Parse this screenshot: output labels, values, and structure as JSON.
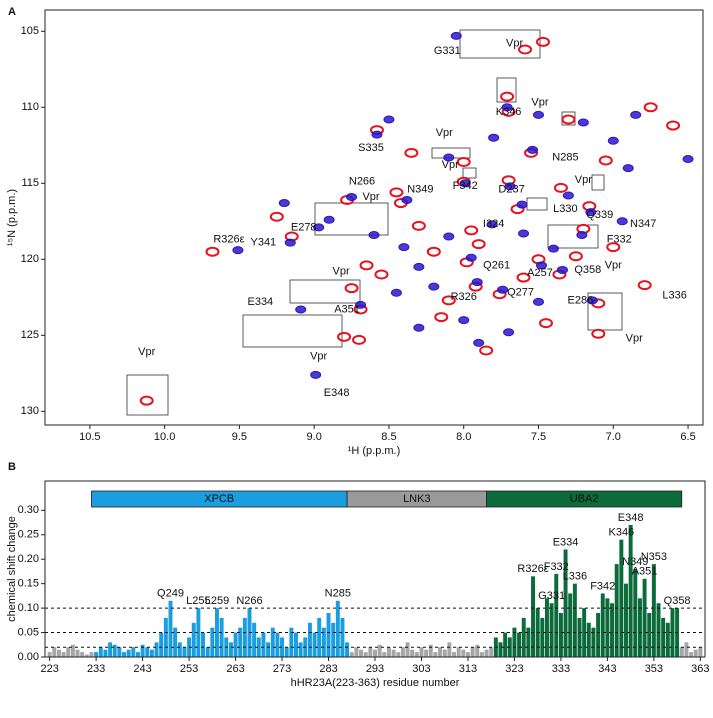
{
  "chart_data": [
    {
      "type": "scatter",
      "panel": "A",
      "x_label": "¹H (p.p.m.)",
      "y_label": "¹⁵N (p.p.m.)",
      "xlim": [
        10.8,
        6.4
      ],
      "ylim": [
        103.6,
        130.9
      ],
      "xticks": [
        {
          "value": 10.5,
          "label": "10.5"
        },
        {
          "value": 10,
          "label": "10.0"
        },
        9.5,
        {
          "value": 9,
          "label": "9.0"
        },
        8.5,
        {
          "value": 8,
          "label": "8.0"
        },
        7.5,
        {
          "value": 7,
          "label": "7.0"
        },
        6.5
      ],
      "yticks": [
        105,
        110,
        115,
        120,
        125,
        130
      ],
      "series": [
        {
          "color": "#e8101a",
          "x": [
            7.47,
            7.59,
            7.71,
            7.7,
            8.58,
            7.55,
            8.0,
            7.7,
            8.78,
            8.42,
            7.64,
            7.16,
            7.2,
            7.95,
            9.68,
            9.15,
            7.98,
            7.5,
            7.36,
            7.92,
            7.76,
            7.1,
            6.79,
            8.69,
            10.12,
            8.8,
            8.7,
            7.1,
            8.0,
            8.45,
            8.65,
            8.55,
            7.35,
            7.3,
            6.75,
            6.6,
            7.9,
            8.2,
            7.6,
            8.1,
            8.3,
            7.0,
            7.25,
            8.75,
            9.25,
            7.85,
            8.15,
            7.45,
            7.05,
            8.35
          ],
          "y": [
            105.7,
            106.2,
            109.3,
            110.3,
            111.5,
            113.0,
            114.9,
            114.8,
            116.1,
            116.3,
            116.7,
            116.5,
            118.0,
            118.1,
            119.5,
            118.5,
            120.2,
            120.0,
            121.0,
            121.8,
            122.3,
            122.9,
            121.7,
            123.3,
            129.3,
            125.1,
            125.3,
            124.9,
            113.6,
            115.6,
            120.4,
            121.0,
            115.3,
            110.8,
            110.0,
            111.2,
            119.0,
            119.5,
            121.2,
            122.7,
            117.8,
            119.2,
            119.8,
            121.9,
            117.2,
            126.0,
            123.8,
            124.2,
            113.5,
            113.0
          ]
        },
        {
          "color": "#2a18c8",
          "x": [
            8.05,
            7.71,
            8.58,
            7.54,
            7.99,
            7.69,
            8.75,
            8.38,
            7.61,
            7.15,
            6.94,
            7.21,
            8.97,
            7.81,
            9.51,
            9.16,
            7.95,
            7.48,
            7.34,
            7.91,
            7.74,
            7.14,
            9.09,
            8.69,
            8.99,
            9.2,
            8.9,
            8.4,
            8.3,
            8.1,
            8.2,
            7.6,
            7.4,
            7.3,
            7.0,
            6.9,
            6.5,
            7.5,
            7.8,
            8.1,
            8.5,
            8.0,
            7.7,
            7.9,
            8.3,
            7.2,
            6.85,
            8.6,
            7.5,
            8.45
          ],
          "y": [
            105.3,
            110.0,
            111.8,
            112.8,
            115.0,
            115.2,
            115.9,
            116.1,
            116.4,
            116.9,
            117.5,
            118.4,
            117.9,
            117.7,
            119.4,
            118.9,
            119.9,
            120.4,
            120.7,
            121.5,
            122.0,
            122.7,
            123.3,
            123.0,
            127.6,
            116.3,
            117.4,
            119.2,
            120.5,
            118.5,
            121.8,
            118.3,
            119.3,
            115.8,
            112.2,
            114.0,
            113.4,
            110.5,
            112.0,
            113.3,
            110.8,
            124.0,
            124.8,
            125.5,
            124.5,
            111.0,
            110.5,
            118.4,
            122.8,
            122.2
          ]
        }
      ],
      "annotations": [
        {
          "text": "G331",
          "x": 8.11,
          "y": 106.3
        },
        {
          "text": "K346",
          "x": 7.7,
          "y": 110.3
        },
        {
          "text": "S335",
          "x": 8.62,
          "y": 112.7
        },
        {
          "text": "N285",
          "x": 7.32,
          "y": 113.3
        },
        {
          "text": "F342",
          "x": 7.99,
          "y": 115.2
        },
        {
          "text": "D237",
          "x": 7.68,
          "y": 115.4
        },
        {
          "text": "N266",
          "x": 8.68,
          "y": 114.9
        },
        {
          "text": "N349",
          "x": 8.29,
          "y": 115.4
        },
        {
          "text": "L330",
          "x": 7.32,
          "y": 116.7
        },
        {
          "text": "Q339",
          "x": 7.09,
          "y": 117.1
        },
        {
          "text": "N347",
          "x": 6.8,
          "y": 117.7
        },
        {
          "text": "F332",
          "x": 6.96,
          "y": 118.7
        },
        {
          "text": "E278",
          "x": 9.07,
          "y": 117.9
        },
        {
          "text": "I324",
          "x": 7.8,
          "y": 117.7
        },
        {
          "text": "R326ε",
          "x": 9.57,
          "y": 118.7
        },
        {
          "text": "Y341",
          "x": 9.34,
          "y": 118.9
        },
        {
          "text": "Q261",
          "x": 7.78,
          "y": 120.4
        },
        {
          "text": "A257",
          "x": 7.49,
          "y": 120.9
        },
        {
          "text": "Q358",
          "x": 7.17,
          "y": 120.7
        },
        {
          "text": "R326",
          "x": 8.0,
          "y": 122.5
        },
        {
          "text": "Q277",
          "x": 7.62,
          "y": 122.2
        },
        {
          "text": "E286",
          "x": 7.22,
          "y": 122.7
        },
        {
          "text": "L336",
          "x": 6.59,
          "y": 122.4
        },
        {
          "text": "E334",
          "x": 9.36,
          "y": 122.8
        },
        {
          "text": "A351",
          "x": 8.78,
          "y": 123.3
        },
        {
          "text": "E348",
          "x": 8.85,
          "y": 128.8
        },
        {
          "text": "Vpr",
          "x": 7.66,
          "y": 105.8
        },
        {
          "text": "Vpr",
          "x": 7.49,
          "y": 109.7
        },
        {
          "text": "Vpr",
          "x": 8.13,
          "y": 111.7
        },
        {
          "text": "Vpr",
          "x": 8.09,
          "y": 113.8
        },
        {
          "text": "Vpr",
          "x": 8.62,
          "y": 115.9
        },
        {
          "text": "Vpr",
          "x": 7.2,
          "y": 114.8
        },
        {
          "text": "Vpr",
          "x": 7.0,
          "y": 120.4
        },
        {
          "text": "Vpr",
          "x": 8.82,
          "y": 120.8
        },
        {
          "text": "Vpr",
          "x": 8.97,
          "y": 126.4
        },
        {
          "text": "Vpr",
          "x": 10.12,
          "y": 126.1
        },
        {
          "text": "Vpr",
          "x": 6.86,
          "y": 125.2
        }
      ]
    },
    {
      "type": "bar",
      "panel": "B",
      "x_label": "hHR23A(223-363) residue number",
      "y_label": "chemical shift change",
      "xlim": [
        222,
        364
      ],
      "ylim": [
        0,
        0.36
      ],
      "xticks": [
        223,
        233,
        243,
        253,
        263,
        273,
        283,
        293,
        303,
        313,
        323,
        333,
        343,
        353,
        363
      ],
      "yticks": [
        {
          "value": 0,
          "label": "0.00"
        },
        0.05,
        {
          "value": 0.1,
          "label": "0.10"
        },
        0.15,
        {
          "value": 0.2,
          "label": "0.20"
        },
        0.25,
        {
          "value": 0.3,
          "label": "0.30"
        }
      ],
      "reference_lines": [
        0.1,
        0.05,
        0.02
      ],
      "domains": [
        {
          "name": "XPCB",
          "start": 232,
          "end": 287,
          "color": "#1a9ee0"
        },
        {
          "name": "LNK3",
          "start": 287,
          "end": 317,
          "color": "#9a9a9a"
        },
        {
          "name": "UBA2",
          "start": 317,
          "end": 359,
          "color": "#0b6b3a"
        }
      ],
      "series": [
        {
          "color": "#a6a6a6",
          "x": [
            223,
            224,
            225,
            226,
            227,
            228,
            229,
            230,
            231,
            232
          ],
          "values": [
            0.01,
            0.02,
            0.015,
            0.01,
            0.02,
            0.025,
            0.015,
            0.01,
            0.005,
            0.01
          ]
        },
        {
          "color": "#1a9ee0",
          "x": [
            233,
            234,
            235,
            236,
            237,
            238,
            239,
            240,
            241,
            242,
            243,
            244,
            245,
            246,
            247,
            248,
            249,
            250,
            251,
            252,
            253,
            254,
            255,
            256,
            257,
            258,
            259,
            260,
            261,
            262,
            263,
            264,
            265,
            266,
            267,
            268,
            269,
            270,
            271,
            272,
            273,
            274,
            275,
            276,
            277,
            278,
            279,
            280,
            281,
            282,
            283,
            284,
            285,
            286,
            287
          ],
          "values": [
            0.01,
            0.02,
            0.015,
            0.03,
            0.025,
            0.02,
            0.01,
            0.015,
            0.02,
            0.01,
            0.025,
            0.02,
            0.015,
            0.03,
            0.05,
            0.08,
            0.115,
            0.06,
            0.03,
            0.02,
            0.04,
            0.07,
            0.1,
            0.05,
            0.02,
            0.06,
            0.1,
            0.08,
            0.04,
            0.03,
            0.05,
            0.06,
            0.08,
            0.1,
            0.07,
            0.04,
            0.05,
            0.03,
            0.06,
            0.05,
            0.04,
            0.02,
            0.06,
            0.05,
            0.03,
            0.04,
            0.07,
            0.05,
            0.08,
            0.06,
            0.09,
            0.07,
            0.115,
            0.08,
            0.03
          ]
        },
        {
          "color": "#a6a6a6",
          "x": [
            288,
            289,
            290,
            291,
            292,
            293,
            294,
            295,
            296,
            297,
            298,
            299,
            300,
            301,
            302,
            303,
            304,
            305,
            306,
            307,
            308,
            309,
            310,
            311,
            312,
            313,
            314,
            315,
            316,
            317,
            318
          ],
          "values": [
            0.01,
            0.02,
            0.015,
            0.01,
            0.02,
            0.015,
            0.025,
            0.01,
            0.02,
            0.015,
            0.01,
            0.02,
            0.03,
            0.015,
            0.01,
            0.02,
            0.015,
            0.025,
            0.01,
            0.02,
            0.015,
            0.03,
            0.01,
            0.02,
            0.015,
            0.01,
            0.02,
            0.025,
            0.01,
            0.015,
            0.02
          ]
        },
        {
          "color": "#0b6b3a",
          "x": [
            319,
            320,
            321,
            322,
            323,
            324,
            325,
            326,
            327,
            328,
            329,
            330,
            331,
            332,
            333,
            334,
            335,
            336,
            337,
            338,
            339,
            340,
            341,
            342,
            343,
            344,
            345,
            346,
            347,
            348,
            349,
            350,
            351,
            352,
            353,
            354,
            355,
            356,
            357,
            358
          ],
          "values": [
            0.04,
            0.03,
            0.05,
            0.04,
            0.06,
            0.05,
            0.08,
            0.06,
            0.165,
            0.1,
            0.08,
            0.12,
            0.11,
            0.17,
            0.09,
            0.22,
            0.13,
            0.15,
            0.08,
            0.1,
            0.07,
            0.06,
            0.09,
            0.13,
            0.12,
            0.11,
            0.19,
            0.24,
            0.15,
            0.27,
            0.18,
            0.12,
            0.16,
            0.09,
            0.19,
            0.11,
            0.08,
            0.07,
            0.1,
            0.1
          ]
        },
        {
          "color": "#a6a6a6",
          "x": [
            359,
            360,
            361,
            362,
            363
          ],
          "values": [
            0.02,
            0.03,
            0.01,
            0.015,
            0.02
          ]
        }
      ],
      "annotations": [
        {
          "text": "Q249",
          "x": 249
        },
        {
          "text": "L255",
          "x": 255
        },
        {
          "text": "L259",
          "x": 259
        },
        {
          "text": "N266",
          "x": 266
        },
        {
          "text": "N285",
          "x": 285
        },
        {
          "text": "R326ε",
          "x": 327
        },
        {
          "text": "G331",
          "x": 331
        },
        {
          "text": "F332",
          "x": 332
        },
        {
          "text": "E334",
          "x": 334
        },
        {
          "text": "L336",
          "x": 336
        },
        {
          "text": "F342",
          "x": 342
        },
        {
          "text": "K346",
          "x": 346
        },
        {
          "text": "E348",
          "x": 348
        },
        {
          "text": "N349",
          "x": 349
        },
        {
          "text": "A351",
          "x": 351
        },
        {
          "text": "N353",
          "x": 353
        },
        {
          "text": "Q358",
          "x": 358
        }
      ]
    }
  ]
}
